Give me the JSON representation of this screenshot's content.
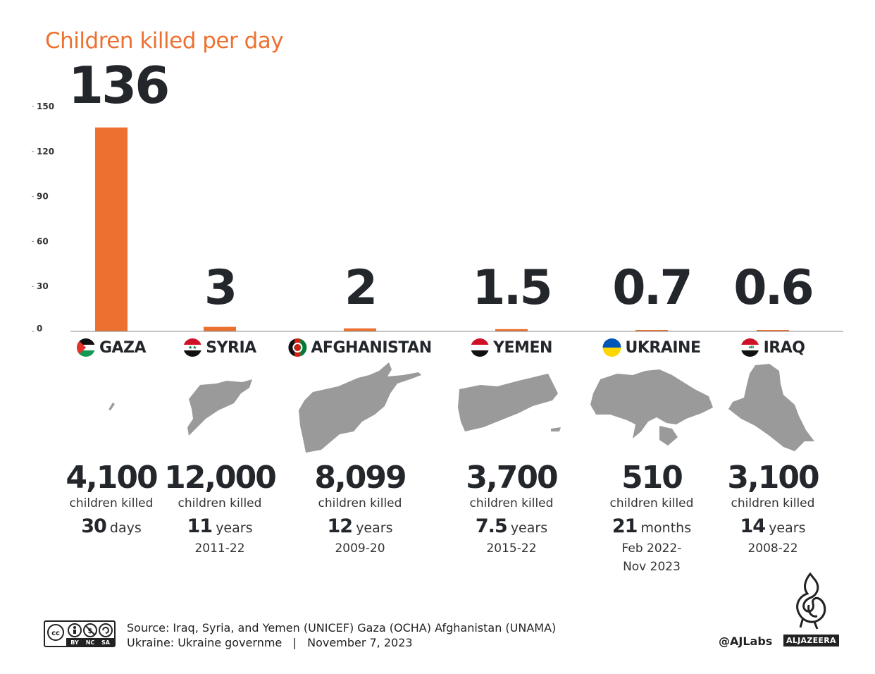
{
  "title": "Children killed per day",
  "colors": {
    "accent": "#ec7130",
    "ink": "#23262b",
    "map": "#9a9a9a",
    "axis": "#888888"
  },
  "chart_data": {
    "type": "bar",
    "categories": [
      "GAZA",
      "SYRIA",
      "AFGHANISTAN",
      "YEMEN",
      "UKRAINE",
      "IRAQ"
    ],
    "values": [
      136,
      3,
      2,
      1.5,
      0.7,
      0.6
    ],
    "value_labels": [
      "136",
      "3",
      "2",
      "1.5",
      "0.7",
      "0.6"
    ],
    "yticks": [
      0,
      30,
      60,
      90,
      120,
      150
    ],
    "ylim": [
      0,
      150
    ],
    "grid": false,
    "legend": "none"
  },
  "countries": [
    {
      "name": "GAZA",
      "flag": "palestine-flag-icon",
      "map": "gaza-map",
      "killed": "4,100",
      "killed_label": "children killed",
      "duration_num": "30",
      "duration_unit": "days",
      "period": ""
    },
    {
      "name": "SYRIA",
      "flag": "syria-flag-icon",
      "map": "syria-map",
      "killed": "12,000",
      "killed_label": "children killed",
      "duration_num": "11",
      "duration_unit": "years",
      "period": "2011-22"
    },
    {
      "name": "AFGHANISTAN",
      "flag": "afghanistan-flag-icon",
      "map": "afghanistan-map",
      "killed": "8,099",
      "killed_label": "children killed",
      "duration_num": "12",
      "duration_unit": "years",
      "period": "2009-20"
    },
    {
      "name": "YEMEN",
      "flag": "yemen-flag-icon",
      "map": "yemen-map",
      "killed": "3,700",
      "killed_label": "children killed",
      "duration_num": "7.5",
      "duration_unit": "years",
      "period": "2015-22"
    },
    {
      "name": "UKRAINE",
      "flag": "ukraine-flag-icon",
      "map": "ukraine-map",
      "killed": "510",
      "killed_label": "children killed",
      "duration_num": "21",
      "duration_unit": "months",
      "period": "Feb 2022-\nNov 2023"
    },
    {
      "name": "IRAQ",
      "flag": "iraq-flag-icon",
      "map": "iraq-map",
      "killed": "3,100",
      "killed_label": "children killed",
      "duration_num": "14",
      "duration_unit": "years",
      "period": "2008-22"
    }
  ],
  "footer": {
    "cc_icons": [
      "cc-icon",
      "by-icon",
      "nc-icon",
      "sa-icon"
    ],
    "cc_labels": [
      "BY",
      "NC",
      "SA"
    ],
    "source_line1": "Source: Iraq, Syria, and Yemen (UNICEF) Gaza (OCHA) Afghanistan (UNAMA)",
    "source_line2": "Ukraine: Ukraine governme   |   November 7, 2023",
    "handle": "@AJLabs",
    "logo_text": "ALJAZEERA"
  }
}
